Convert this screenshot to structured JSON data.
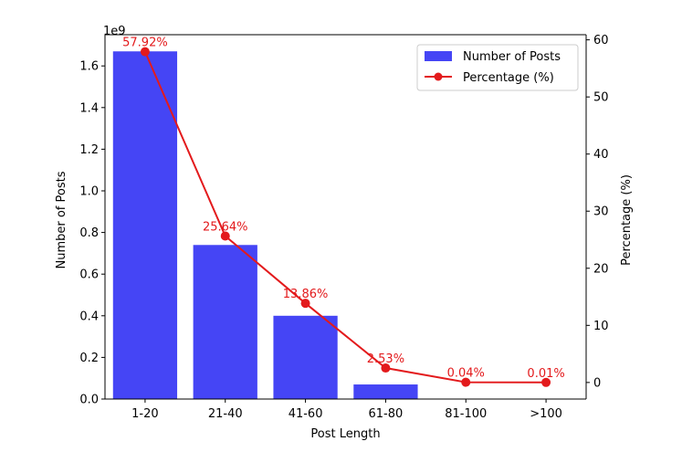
{
  "chart_data": {
    "type": "bar",
    "categories": [
      "1-20",
      "21-40",
      "41-60",
      "61-80",
      "81-100",
      ">100"
    ],
    "series": [
      {
        "name": "Number of Posts",
        "axis": "left",
        "type": "bar",
        "values": [
          1670000000.0,
          740000000.0,
          400000000.0,
          70000000.0,
          1000000.0,
          200000.0
        ]
      },
      {
        "name": "Percentage (%)",
        "axis": "right",
        "type": "line",
        "values": [
          57.92,
          25.64,
          13.86,
          2.53,
          0.04,
          0.01
        ],
        "labels": [
          "57.92%",
          "25.64%",
          "13.86%",
          "2.53%",
          "0.04%",
          "0.01%"
        ]
      }
    ],
    "xlabel": "Post Length",
    "ylabel": "Number of Posts",
    "y2label": "Percentage (%)",
    "y_offset_text": "1e9",
    "ylim": [
      0,
      1.75
    ],
    "y_ticks": [
      "0.0",
      "0.2",
      "0.4",
      "0.6",
      "0.8",
      "1.0",
      "1.2",
      "1.4",
      "1.6"
    ],
    "y2lim": [
      -2.9,
      60.9
    ],
    "y2_ticks": [
      "0",
      "10",
      "20",
      "30",
      "40",
      "50",
      "60"
    ],
    "grid": false,
    "legend_position": "top-right",
    "colors": {
      "bar": "#4545f5",
      "line": "#e31a1c",
      "axis": "#000000"
    }
  }
}
